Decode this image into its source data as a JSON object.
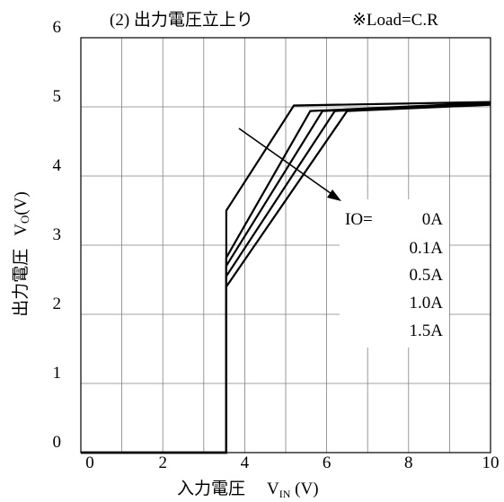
{
  "chart_data": {
    "type": "line",
    "title": "(2) 出力電圧立上り",
    "load_note": "※Load=C.R",
    "xlabel": {
      "prefix": "入力電圧",
      "symbol": "V",
      "subscript": "IN",
      "unit": " (V)"
    },
    "ylabel": {
      "prefix": "出力電圧",
      "symbol": "V",
      "subscript": "O",
      "unit": "(V)"
    },
    "xlim": [
      0,
      10
    ],
    "ylim": [
      0,
      6
    ],
    "xticks": [
      "0",
      "2",
      "4",
      "6",
      "8",
      "10"
    ],
    "yticks": [
      "0",
      "1",
      "2",
      "3",
      "4",
      "5",
      "6"
    ],
    "grid": true,
    "legend": {
      "prefix": "IO=",
      "entries": [
        "0A",
        "0.1A",
        "0.5A",
        "1.0A",
        "1.5A"
      ]
    },
    "series": [
      {
        "name": "0A",
        "x": [
          0,
          3.55,
          3.55,
          3.55,
          5.2,
          10.0
        ],
        "y": [
          0,
          0,
          2.4,
          3.5,
          5.02,
          5.07
        ]
      },
      {
        "name": "0.1A",
        "x": [
          0,
          3.55,
          3.55,
          3.55,
          5.6,
          10.0
        ],
        "y": [
          0,
          0,
          2.4,
          2.82,
          4.94,
          5.06
        ]
      },
      {
        "name": "0.5A",
        "x": [
          0,
          3.55,
          3.55,
          3.55,
          5.9,
          10.0
        ],
        "y": [
          0,
          0,
          2.4,
          2.7,
          4.94,
          5.05
        ]
      },
      {
        "name": "1.0A",
        "x": [
          0,
          3.55,
          3.55,
          3.55,
          6.2,
          10.0
        ],
        "y": [
          0,
          0,
          2.4,
          2.55,
          4.94,
          5.04
        ]
      },
      {
        "name": "1.5A",
        "x": [
          0,
          3.55,
          3.55,
          6.5,
          10.0
        ],
        "y": [
          0,
          0,
          2.4,
          4.94,
          5.03
        ]
      }
    ],
    "colors": {
      "line": "#000000",
      "grid": "#808080",
      "background": "#ffffff"
    }
  }
}
